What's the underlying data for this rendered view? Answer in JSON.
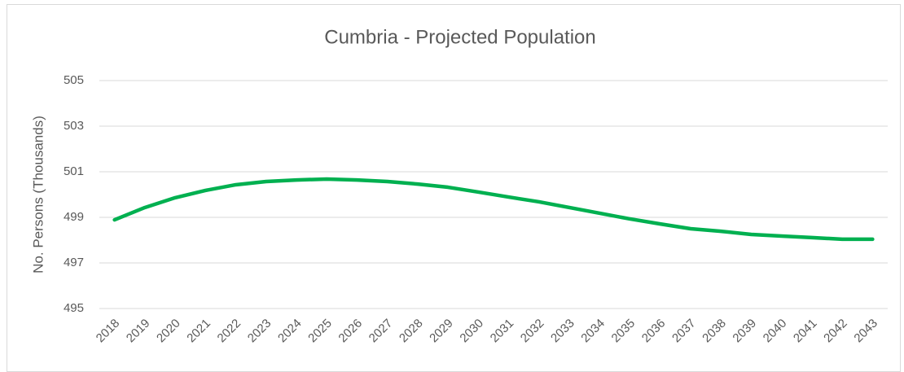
{
  "chart_data": {
    "type": "line",
    "title": "Cumbria - Projected Population",
    "y_label": "No. Persons (Thousands)",
    "categories": [
      "2018",
      "2019",
      "2020",
      "2021",
      "2022",
      "2023",
      "2024",
      "2025",
      "2026",
      "2027",
      "2028",
      "2029",
      "2030",
      "2031",
      "2032",
      "2033",
      "2034",
      "2035",
      "2036",
      "2037",
      "2038",
      "2039",
      "2040",
      "2041",
      "2042",
      "2043"
    ],
    "series": [
      {
        "name": "Cumbria",
        "color": "#00b050",
        "values": [
          498.89,
          499.43,
          499.86,
          500.18,
          500.43,
          500.57,
          500.64,
          500.68,
          500.64,
          500.57,
          500.46,
          500.32,
          500.11,
          499.89,
          499.68,
          499.43,
          499.18,
          498.93,
          498.71,
          498.5,
          498.39,
          498.25,
          498.18,
          498.11,
          498.04,
          498.04
        ]
      }
    ],
    "ylim": [
      495,
      505
    ],
    "yticks": [
      495,
      497,
      499,
      501,
      503,
      505
    ],
    "grid": true
  }
}
